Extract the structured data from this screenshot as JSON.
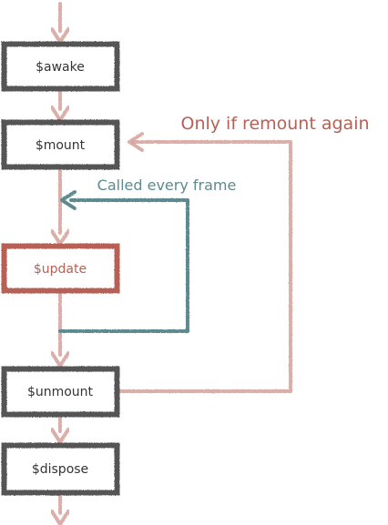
{
  "colors": {
    "flow": "#d4a19a",
    "box_border": "#555555",
    "box_text": "#333333",
    "highlight": "#b76055",
    "loop": "#5b8a8f",
    "remount": "#b76055"
  },
  "nodes": [
    {
      "label": "$awake"
    },
    {
      "label": "$mount"
    },
    {
      "label": "$update"
    },
    {
      "label": "$unmount"
    },
    {
      "label": "$dispose"
    }
  ],
  "labels": {
    "loop": "Called every frame",
    "remount": "Only if remount again"
  }
}
